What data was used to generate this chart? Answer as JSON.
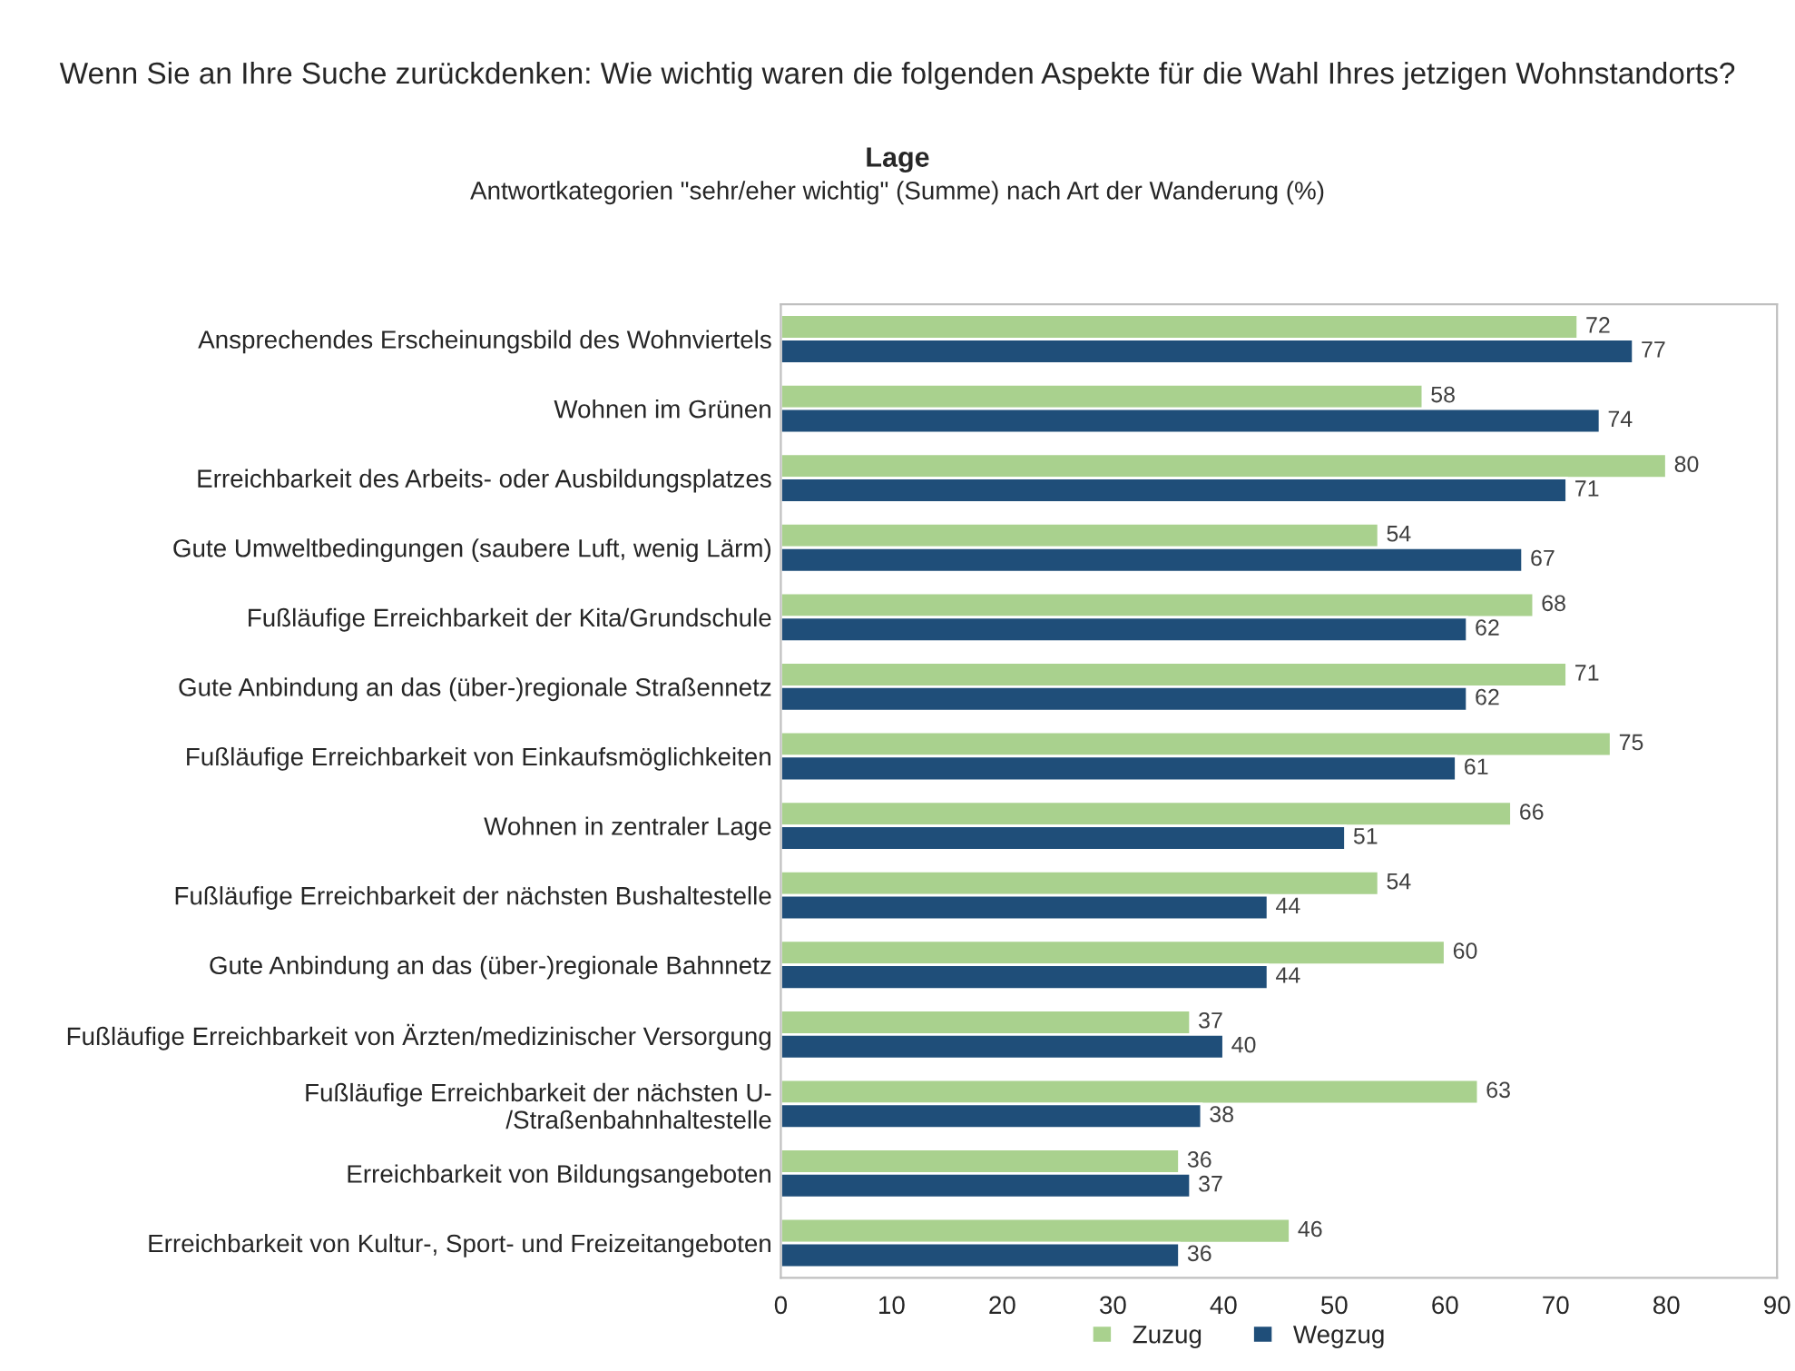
{
  "chart_data": {
    "type": "bar",
    "orientation": "horizontal",
    "title": "Wenn Sie an Ihre Suche zurückdenken: Wie wichtig waren die folgenden Aspekte für die Wahl Ihres jetzigen Wohnstandorts?",
    "subtitle": "Lage",
    "annotations": [
      "Antwortkategorien \"sehr/eher wichtig\" (Summe) nach Art der Wanderung (%)"
    ],
    "categories": [
      "Ansprechendes Erscheinungsbild des Wohnviertels",
      "Wohnen im Grünen",
      "Erreichbarkeit des Arbeits- oder Ausbildungsplatzes",
      "Gute Umweltbedingungen (saubere Luft, wenig Lärm)",
      "Fußläufige Erreichbarkeit der Kita/Grundschule",
      "Gute Anbindung an das (über-)regionale Straßennetz",
      "Fußläufige Erreichbarkeit von Einkaufsmöglichkeiten",
      "Wohnen in zentraler Lage",
      "Fußläufige Erreichbarkeit der nächsten Bushaltestelle",
      "Gute Anbindung an das (über-)regionale Bahnnetz",
      "Fußläufige Erreichbarkeit von Ärzten/medizinischer Versorgung",
      "Fußläufige Erreichbarkeit der nächsten U-\n/Straßenbahnhaltestelle",
      "Erreichbarkeit von Bildungsangeboten",
      "Erreichbarkeit von Kultur-, Sport- und Freizeitangeboten"
    ],
    "series": [
      {
        "name": "Zuzug",
        "color": "#a9d18e",
        "values": [
          72,
          58,
          80,
          54,
          68,
          71,
          75,
          66,
          54,
          60,
          37,
          63,
          36,
          46
        ]
      },
      {
        "name": "Wegzug",
        "color": "#1f4e79",
        "values": [
          77,
          74,
          71,
          67,
          62,
          62,
          61,
          51,
          44,
          44,
          40,
          38,
          37,
          36
        ]
      }
    ],
    "xlim": [
      0,
      90
    ],
    "xticks": [
      0,
      10,
      20,
      30,
      40,
      50,
      60,
      70,
      80,
      90
    ],
    "data_labels": true,
    "legend": "bottom",
    "grid": false
  }
}
